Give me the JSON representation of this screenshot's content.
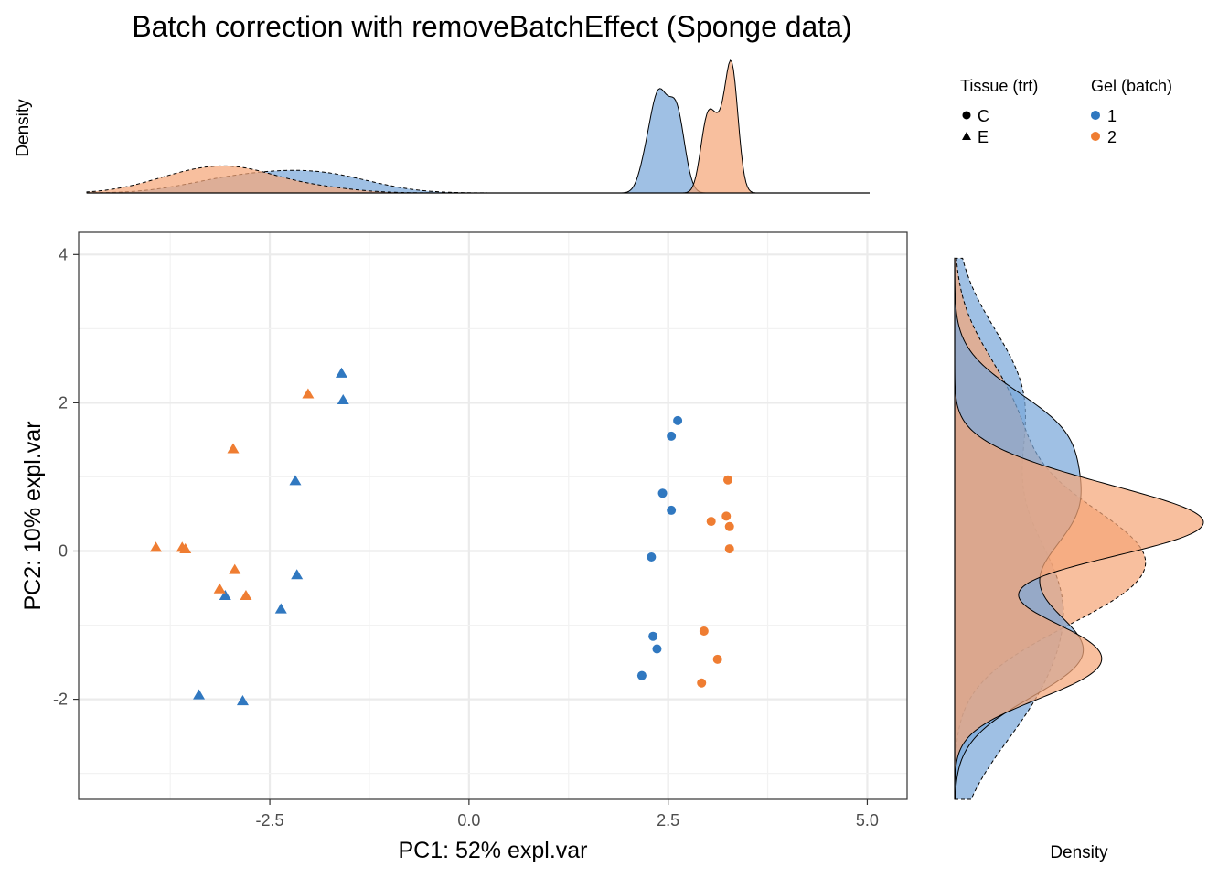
{
  "chart_data": {
    "type": "scatter",
    "title": "Batch correction with removeBatchEffect (Sponge data)",
    "xlabel": "PC1: 52% expl.var",
    "ylabel": "PC2: 10% expl.var",
    "xlim": [
      -4.9,
      5.5
    ],
    "ylim": [
      -3.35,
      4.3
    ],
    "x_ticks": [
      -2.5,
      0.0,
      2.5,
      5.0
    ],
    "x_tick_labels": [
      "-2.5",
      "0.0",
      "2.5",
      "5.0"
    ],
    "y_ticks": [
      -2,
      0,
      2,
      4
    ],
    "y_tick_labels": [
      "-2",
      "0",
      "2",
      "4"
    ],
    "grid": true,
    "top_density_label": "Density",
    "right_density_label": "Density",
    "legend": {
      "position": "top-right",
      "shape_title": "Tissue (trt)",
      "shape_items": [
        {
          "label": "C",
          "shape": "circle"
        },
        {
          "label": "E",
          "shape": "triangle"
        }
      ],
      "color_title": "Gel (batch)",
      "color_items": [
        {
          "label": "1",
          "color": "#3078c0"
        },
        {
          "label": "2",
          "color": "#ef7d32"
        }
      ]
    },
    "colors": {
      "batch1": "#3078c0",
      "batch2": "#ef7d32",
      "batch1_fill": "#7aa8d9",
      "batch2_fill": "#f5a679"
    },
    "series": [
      {
        "batch": "1",
        "tissue": "C",
        "points": [
          [
            2.62,
            1.76
          ],
          [
            2.54,
            1.55
          ],
          [
            2.43,
            0.78
          ],
          [
            2.54,
            0.55
          ],
          [
            2.29,
            -0.08
          ],
          [
            2.31,
            -1.15
          ],
          [
            2.36,
            -1.32
          ],
          [
            2.17,
            -1.68
          ]
        ]
      },
      {
        "batch": "2",
        "tissue": "C",
        "points": [
          [
            3.25,
            0.96
          ],
          [
            3.23,
            0.47
          ],
          [
            3.04,
            0.4
          ],
          [
            3.27,
            0.33
          ],
          [
            3.27,
            0.03
          ],
          [
            2.95,
            -1.08
          ],
          [
            3.12,
            -1.46
          ],
          [
            2.92,
            -1.78
          ]
        ]
      },
      {
        "batch": "1",
        "tissue": "E",
        "points": [
          [
            -1.6,
            2.4
          ],
          [
            -1.58,
            2.04
          ],
          [
            -2.18,
            0.95
          ],
          [
            -2.16,
            -0.32
          ],
          [
            -3.06,
            -0.6
          ],
          [
            -2.36,
            -0.78
          ],
          [
            -3.39,
            -1.94
          ],
          [
            -2.84,
            -2.02
          ]
        ]
      },
      {
        "batch": "2",
        "tissue": "E",
        "points": [
          [
            -2.02,
            2.12
          ],
          [
            -2.96,
            1.38
          ],
          [
            -3.93,
            0.05
          ],
          [
            -3.6,
            0.05
          ],
          [
            -3.56,
            0.03
          ],
          [
            -2.94,
            -0.25
          ],
          [
            -3.13,
            -0.51
          ],
          [
            -2.8,
            -0.6
          ]
        ]
      }
    ]
  }
}
